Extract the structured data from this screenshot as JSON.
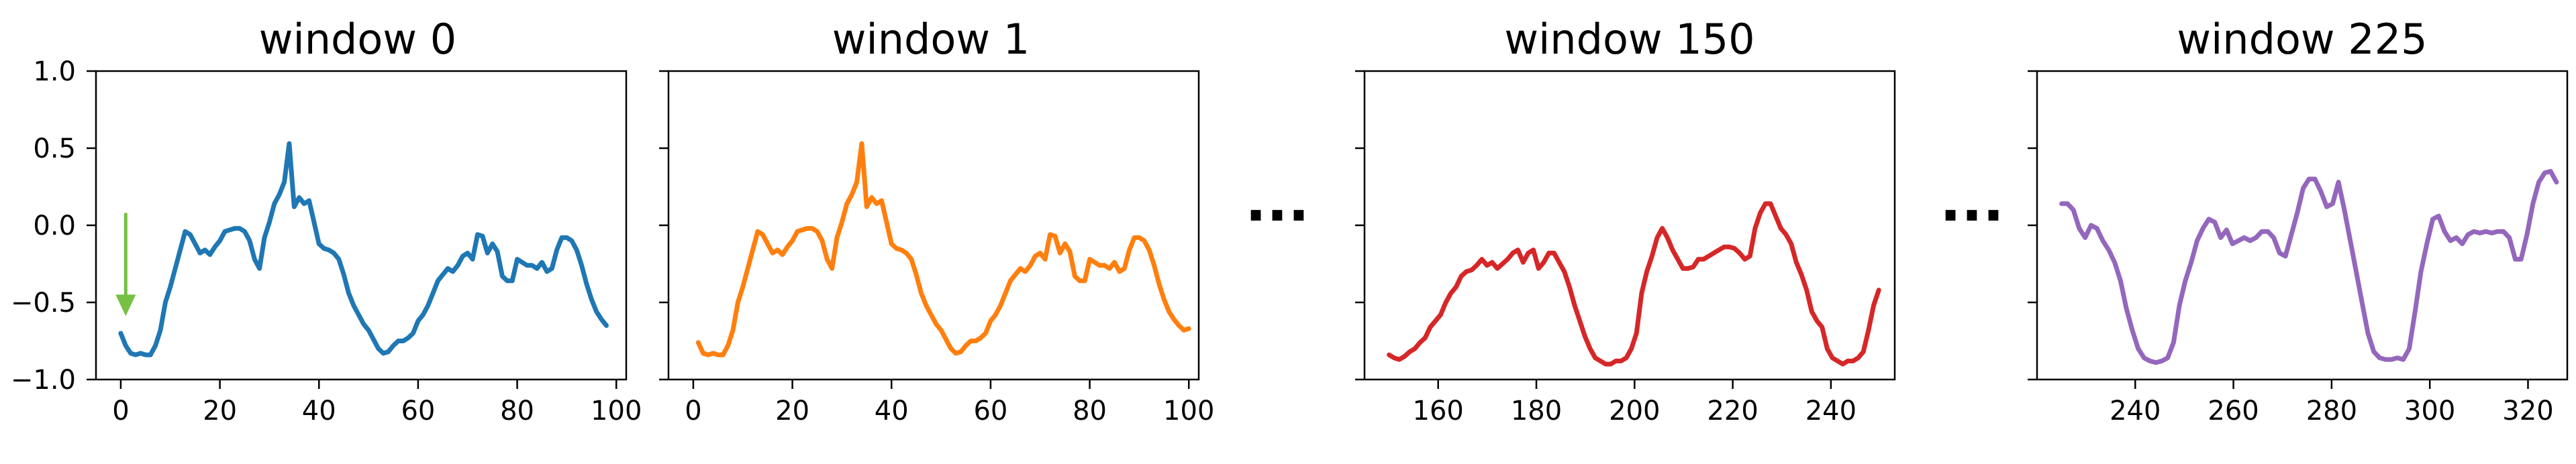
{
  "chart_data": [
    {
      "type": "line",
      "title": "window 0",
      "xlim": [
        -5,
        102
      ],
      "ylim": [
        -1.0,
        1.0
      ],
      "xticks": [
        0,
        20,
        40,
        60,
        80,
        100
      ],
      "yticks": [
        -1.0,
        -0.5,
        0.0,
        0.5,
        1.0
      ],
      "ytick_labels": [
        "−1.0",
        "−0.5",
        "0.0",
        "0.5",
        "1.0"
      ],
      "grid": false,
      "color": "#1f77b4",
      "x_start": 0,
      "y": [
        -0.7,
        -0.78,
        -0.83,
        -0.84,
        -0.83,
        -0.84,
        -0.84,
        -0.78,
        -0.68,
        -0.5,
        -0.4,
        -0.28,
        -0.16,
        -0.04,
        -0.06,
        -0.12,
        -0.18,
        -0.16,
        -0.19,
        -0.14,
        -0.1,
        -0.04,
        -0.03,
        -0.02,
        -0.02,
        -0.04,
        -0.1,
        -0.22,
        -0.28,
        -0.08,
        0.02,
        0.14,
        0.2,
        0.28,
        0.53,
        0.12,
        0.18,
        0.14,
        0.16,
        0.02,
        -0.12,
        -0.15,
        -0.16,
        -0.18,
        -0.22,
        -0.32,
        -0.44,
        -0.52,
        -0.58,
        -0.64,
        -0.68,
        -0.74,
        -0.8,
        -0.83,
        -0.82,
        -0.78,
        -0.75,
        -0.75,
        -0.73,
        -0.7,
        -0.62,
        -0.58,
        -0.52,
        -0.44,
        -0.36,
        -0.32,
        -0.28,
        -0.3,
        -0.26,
        -0.2,
        -0.18,
        -0.22,
        -0.06,
        -0.07,
        -0.18,
        -0.12,
        -0.17,
        -0.33,
        -0.36,
        -0.36,
        -0.22,
        -0.24,
        -0.26,
        -0.26,
        -0.28,
        -0.24,
        -0.3,
        -0.28,
        -0.16,
        -0.08,
        -0.08,
        -0.1,
        -0.16,
        -0.26,
        -0.38,
        -0.48,
        -0.56,
        -0.61,
        -0.65
      ],
      "annotation": {
        "type": "arrow",
        "color": "#76c043",
        "x": 1,
        "y_from": 0.08,
        "y_to": -0.58
      }
    },
    {
      "type": "line",
      "title": "window 1",
      "xlim": [
        -5,
        102
      ],
      "ylim": [
        -1.0,
        1.0
      ],
      "xticks": [
        0,
        20,
        40,
        60,
        80,
        100
      ],
      "yticks": [
        -1.0,
        -0.5,
        0.0,
        0.5,
        1.0
      ],
      "grid": false,
      "color": "#ff7f0e",
      "x_start": 1,
      "y": [
        -0.76,
        -0.83,
        -0.84,
        -0.83,
        -0.84,
        -0.84,
        -0.78,
        -0.68,
        -0.5,
        -0.4,
        -0.28,
        -0.16,
        -0.04,
        -0.06,
        -0.12,
        -0.18,
        -0.16,
        -0.19,
        -0.14,
        -0.1,
        -0.04,
        -0.03,
        -0.02,
        -0.02,
        -0.04,
        -0.1,
        -0.22,
        -0.28,
        -0.08,
        0.02,
        0.14,
        0.2,
        0.28,
        0.53,
        0.12,
        0.18,
        0.14,
        0.16,
        0.02,
        -0.12,
        -0.15,
        -0.16,
        -0.18,
        -0.22,
        -0.32,
        -0.44,
        -0.52,
        -0.58,
        -0.64,
        -0.68,
        -0.74,
        -0.8,
        -0.83,
        -0.82,
        -0.78,
        -0.75,
        -0.75,
        -0.73,
        -0.7,
        -0.62,
        -0.58,
        -0.52,
        -0.44,
        -0.36,
        -0.32,
        -0.28,
        -0.3,
        -0.26,
        -0.2,
        -0.18,
        -0.22,
        -0.06,
        -0.07,
        -0.18,
        -0.12,
        -0.17,
        -0.33,
        -0.36,
        -0.36,
        -0.22,
        -0.24,
        -0.26,
        -0.26,
        -0.28,
        -0.24,
        -0.3,
        -0.28,
        -0.16,
        -0.08,
        -0.08,
        -0.1,
        -0.16,
        -0.26,
        -0.38,
        -0.48,
        -0.56,
        -0.61,
        -0.65,
        -0.68,
        -0.67
      ]
    },
    {
      "type": "line",
      "title": "window 150",
      "xlim": [
        145,
        253
      ],
      "ylim": [
        -1.0,
        1.0
      ],
      "xticks": [
        160,
        180,
        200,
        220,
        240
      ],
      "yticks": [
        -1.0,
        -0.5,
        0.0,
        0.5,
        1.0
      ],
      "grid": false,
      "color": "#d62728",
      "x_start": 150,
      "y": [
        -0.84,
        -0.86,
        -0.87,
        -0.85,
        -0.82,
        -0.8,
        -0.76,
        -0.73,
        -0.66,
        -0.62,
        -0.58,
        -0.5,
        -0.44,
        -0.4,
        -0.33,
        -0.3,
        -0.29,
        -0.26,
        -0.22,
        -0.26,
        -0.24,
        -0.28,
        -0.25,
        -0.22,
        -0.18,
        -0.16,
        -0.24,
        -0.18,
        -0.16,
        -0.28,
        -0.24,
        -0.18,
        -0.18,
        -0.24,
        -0.3,
        -0.4,
        -0.52,
        -0.62,
        -0.72,
        -0.8,
        -0.86,
        -0.88,
        -0.9,
        -0.9,
        -0.88,
        -0.88,
        -0.86,
        -0.8,
        -0.7,
        -0.44,
        -0.3,
        -0.2,
        -0.08,
        -0.02,
        -0.08,
        -0.16,
        -0.22,
        -0.28,
        -0.28,
        -0.27,
        -0.22,
        -0.22,
        -0.2,
        -0.18,
        -0.16,
        -0.14,
        -0.14,
        -0.15,
        -0.18,
        -0.22,
        -0.2,
        -0.02,
        0.08,
        0.14,
        0.14,
        0.06,
        -0.02,
        -0.06,
        -0.12,
        -0.24,
        -0.32,
        -0.42,
        -0.56,
        -0.62,
        -0.66,
        -0.8,
        -0.86,
        -0.88,
        -0.9,
        -0.88,
        -0.88,
        -0.86,
        -0.82,
        -0.68,
        -0.52,
        -0.42
      ],
      "x_step": 1.05
    },
    {
      "type": "line",
      "title": "window 225",
      "xlim": [
        220,
        328
      ],
      "ylim": [
        -1.0,
        1.0
      ],
      "xticks": [
        240,
        260,
        280,
        300,
        320
      ],
      "yticks": [
        -1.0,
        -0.5,
        0.0,
        0.5,
        1.0
      ],
      "grid": false,
      "color": "#9467bd",
      "x_start": 225,
      "y": [
        0.14,
        0.14,
        0.1,
        -0.02,
        -0.08,
        0.0,
        -0.02,
        -0.1,
        -0.16,
        -0.24,
        -0.36,
        -0.54,
        -0.68,
        -0.8,
        -0.86,
        -0.88,
        -0.89,
        -0.88,
        -0.86,
        -0.76,
        -0.52,
        -0.36,
        -0.24,
        -0.1,
        -0.02,
        0.04,
        0.02,
        -0.08,
        -0.03,
        -0.12,
        -0.1,
        -0.08,
        -0.1,
        -0.08,
        -0.04,
        -0.04,
        -0.08,
        -0.18,
        -0.2,
        -0.06,
        0.08,
        0.24,
        0.3,
        0.3,
        0.22,
        0.12,
        0.14,
        0.28,
        0.1,
        -0.1,
        -0.3,
        -0.5,
        -0.7,
        -0.82,
        -0.86,
        -0.87,
        -0.87,
        -0.86,
        -0.87,
        -0.8,
        -0.56,
        -0.3,
        -0.12,
        0.04,
        0.06,
        -0.04,
        -0.1,
        -0.08,
        -0.12,
        -0.06,
        -0.04,
        -0.05,
        -0.04,
        -0.05,
        -0.04,
        -0.04,
        -0.08,
        -0.22,
        -0.22,
        -0.06,
        0.14,
        0.28,
        0.34,
        0.35,
        0.28
      ],
      "x_step": 1.2
    }
  ]
}
